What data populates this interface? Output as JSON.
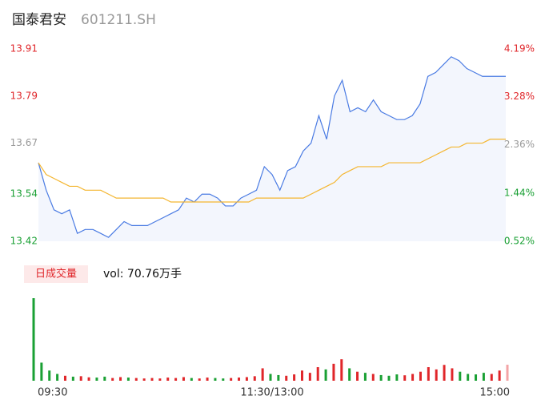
{
  "header": {
    "name": "国泰君安",
    "code": "601211.SH"
  },
  "chart_data": [
    {
      "type": "line",
      "categories": [
        "09:30",
        null,
        null,
        null,
        null,
        null,
        null,
        null,
        null,
        null,
        null,
        null,
        null,
        null,
        null,
        null,
        null,
        null,
        null,
        null,
        null,
        null,
        null,
        null,
        null,
        null,
        null,
        null,
        null,
        null,
        "11:30/13:00",
        null,
        null,
        null,
        null,
        null,
        null,
        null,
        null,
        null,
        null,
        null,
        null,
        null,
        null,
        null,
        null,
        null,
        null,
        null,
        null,
        null,
        null,
        null,
        null,
        null,
        null,
        null,
        null,
        null,
        "15:00"
      ],
      "series": [
        {
          "color": "#4a7be3",
          "values": [
            13.62,
            13.55,
            13.5,
            13.49,
            13.5,
            13.44,
            13.45,
            13.45,
            13.44,
            13.43,
            13.45,
            13.47,
            13.46,
            13.46,
            13.46,
            13.47,
            13.48,
            13.49,
            13.5,
            13.53,
            13.52,
            13.54,
            13.54,
            13.53,
            13.51,
            13.51,
            13.53,
            13.54,
            13.55,
            13.61,
            13.59,
            13.55,
            13.6,
            13.61,
            13.65,
            13.67,
            13.74,
            13.68,
            13.79,
            13.83,
            13.75,
            13.76,
            13.75,
            13.78,
            13.75,
            13.74,
            13.73,
            13.73,
            13.74,
            13.77,
            13.84,
            13.85,
            13.87,
            13.89,
            13.88,
            13.86,
            13.85,
            13.84,
            13.84,
            13.84,
            13.84
          ]
        },
        {
          "color": "#f4b630",
          "values": [
            13.62,
            13.59,
            13.58,
            13.57,
            13.56,
            13.56,
            13.55,
            13.55,
            13.55,
            13.54,
            13.53,
            13.53,
            13.53,
            13.53,
            13.53,
            13.53,
            13.53,
            13.52,
            13.52,
            13.52,
            13.52,
            13.52,
            13.52,
            13.52,
            13.52,
            13.52,
            13.52,
            13.52,
            13.53,
            13.53,
            13.53,
            13.53,
            13.53,
            13.53,
            13.53,
            13.54,
            13.55,
            13.56,
            13.57,
            13.59,
            13.6,
            13.61,
            13.61,
            13.61,
            13.61,
            13.62,
            13.62,
            13.62,
            13.62,
            13.62,
            13.63,
            13.64,
            13.65,
            13.66,
            13.66,
            13.67,
            13.67,
            13.67,
            13.68,
            13.68,
            13.68
          ]
        }
      ],
      "area_color": "#f3f6fd",
      "ylim": [
        13.42,
        13.91
      ],
      "yticks": [
        13.42,
        13.54,
        13.67,
        13.79,
        13.91
      ],
      "ytick_colors": [
        "#1aa034",
        "#1aa034",
        "#999999",
        "#e0262a",
        "#e0262a"
      ],
      "y2lim": [
        0.52,
        4.19
      ],
      "y2ticks": [
        {
          "value": 0.52,
          "label": "0.52%"
        },
        {
          "value": 1.44,
          "label": "1.44%"
        },
        {
          "value": 2.36,
          "label": "2.36%"
        },
        {
          "value": 3.28,
          "label": "3.28%"
        },
        {
          "value": 4.19,
          "label": "4.19%"
        }
      ]
    },
    {
      "type": "bar",
      "legend_tag": "日成交量",
      "vol_label": "vol: 70.76万手",
      "up_color": "#e0262a",
      "down_color": "#1aa034",
      "last_color": "#f3a4a6",
      "values": [
        365,
        80,
        45,
        30,
        22,
        18,
        20,
        15,
        14,
        18,
        12,
        16,
        14,
        12,
        10,
        12,
        10,
        14,
        12,
        16,
        12,
        10,
        14,
        12,
        10,
        12,
        14,
        16,
        20,
        55,
        30,
        25,
        22,
        28,
        45,
        35,
        60,
        50,
        75,
        95,
        55,
        40,
        35,
        30,
        25,
        22,
        28,
        24,
        30,
        40,
        60,
        50,
        70,
        55,
        40,
        30,
        28,
        35,
        30,
        45,
        70.76
      ],
      "ylim": [
        0,
        365
      ]
    }
  ]
}
